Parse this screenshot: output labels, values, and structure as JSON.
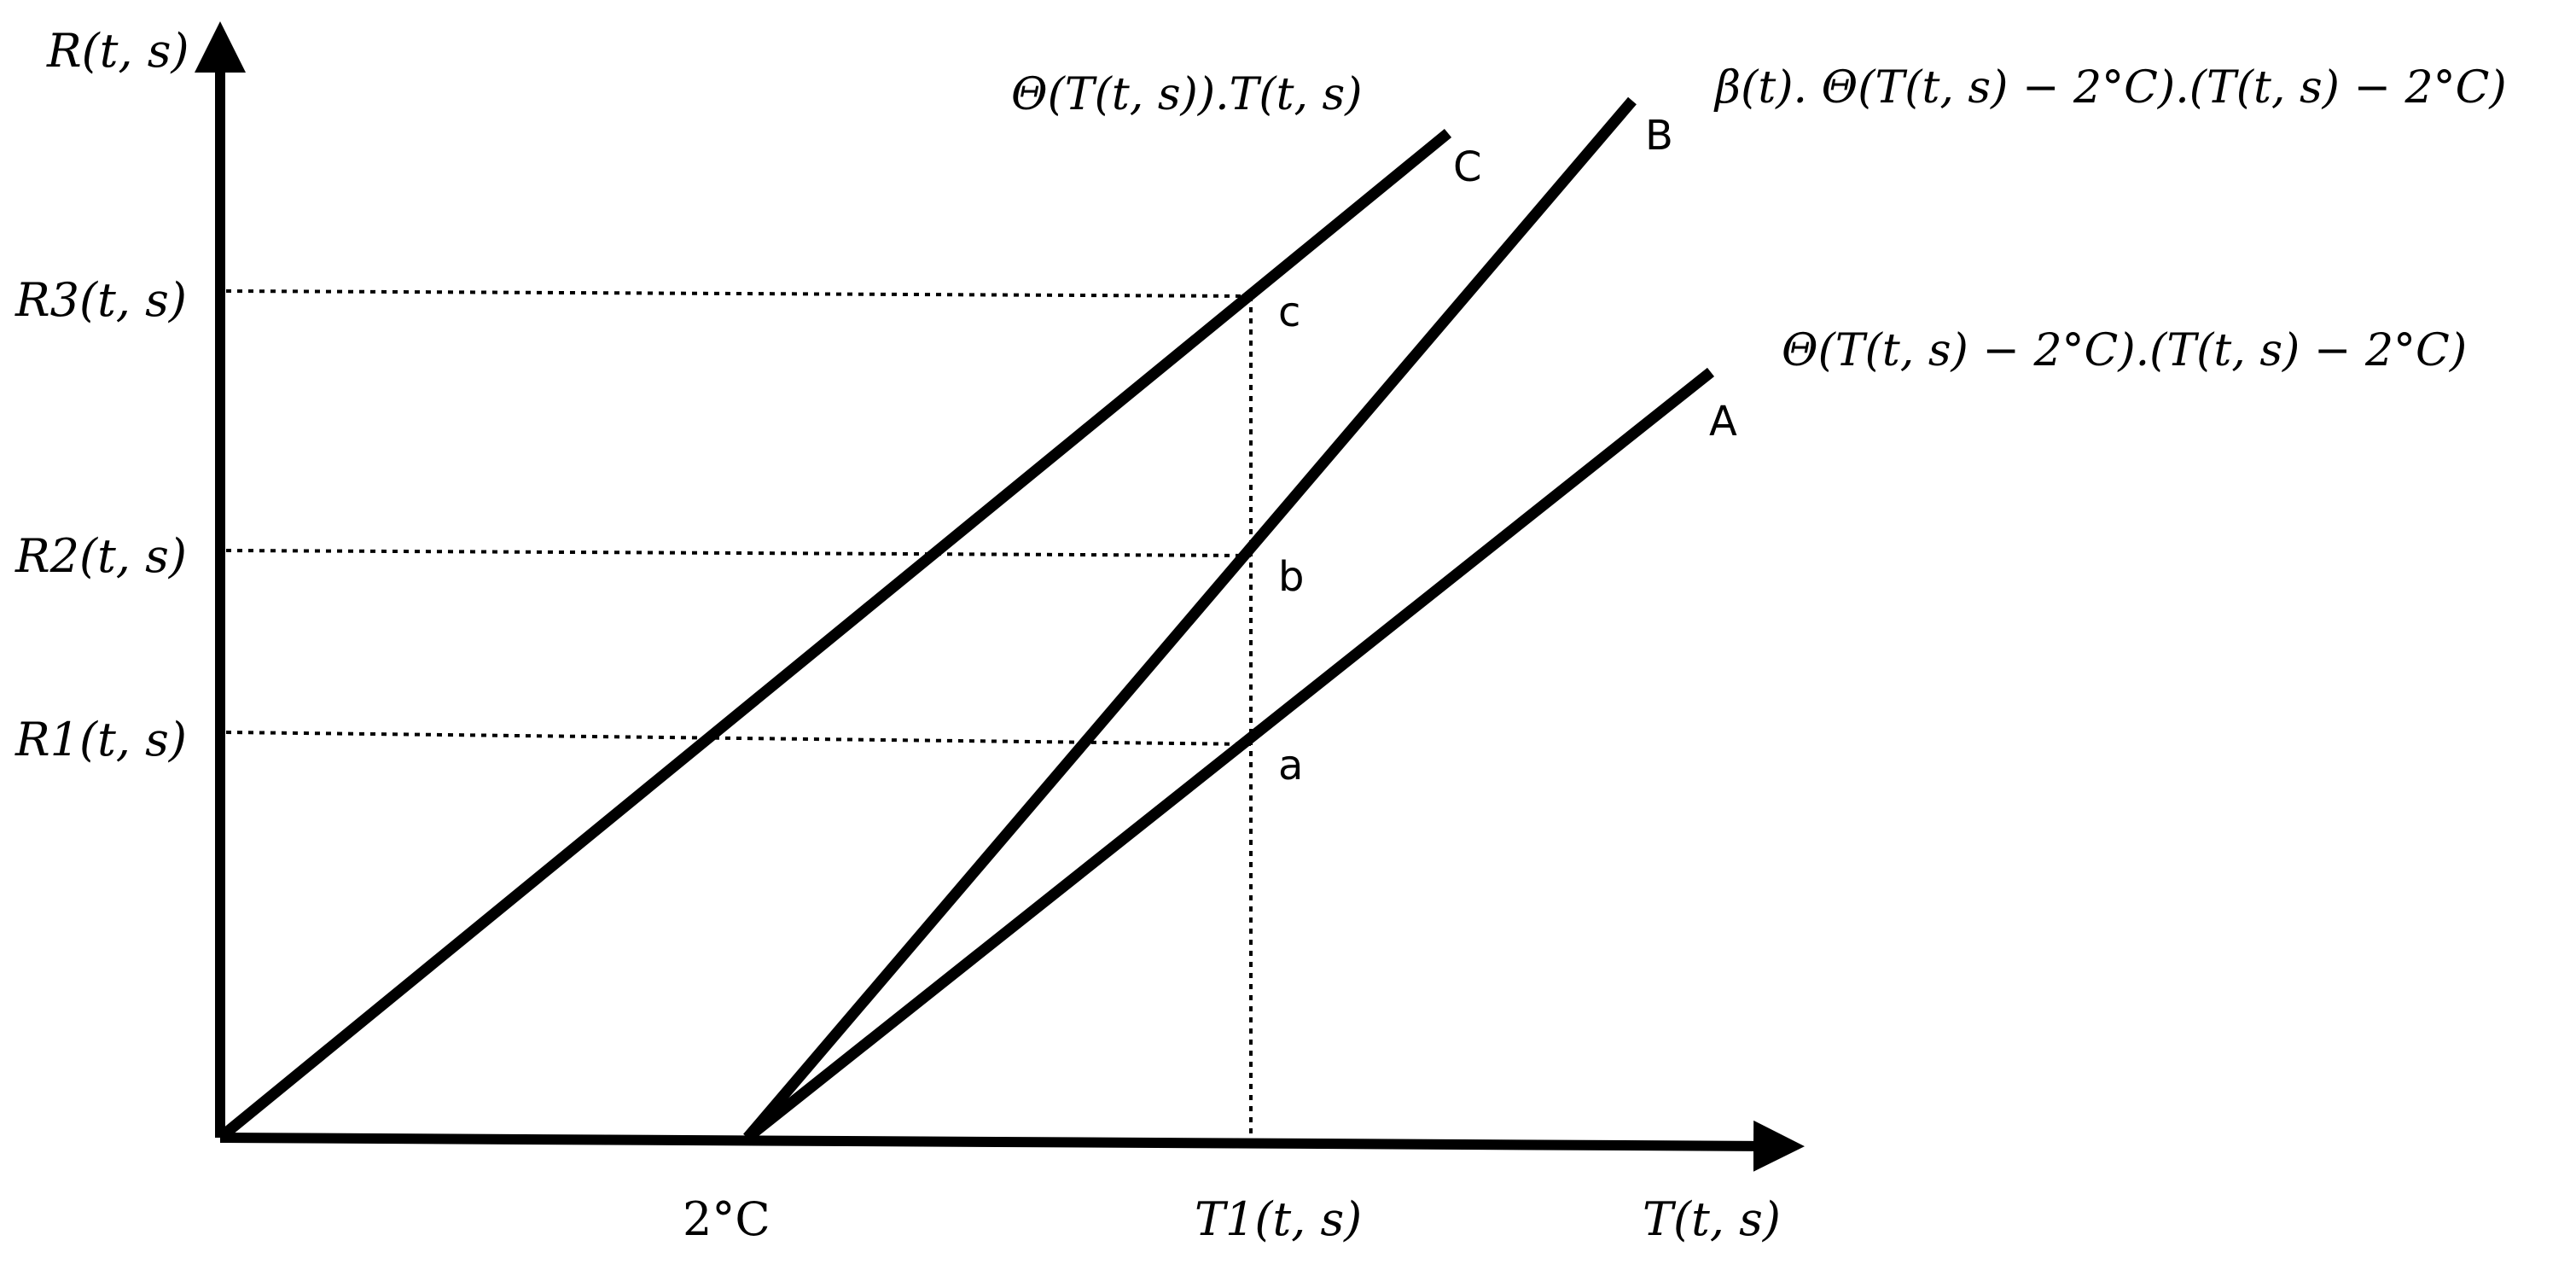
{
  "axes": {
    "y_label": "R(t, s)",
    "x_label": "T(t, s)",
    "y_ticks": [
      "R3(t, s)",
      "R2(t, s)",
      "R1(t, s)"
    ],
    "x_ticks": [
      "2°C",
      "T1(t, s)"
    ]
  },
  "curves": [
    {
      "id": "C",
      "letter": "C",
      "formula": "Θ(T(t, s)).T(t, s)"
    },
    {
      "id": "B",
      "letter": "B",
      "formula": "β(t). Θ(T(t, s) − 2°C).(T(t, s) − 2°C)"
    },
    {
      "id": "A",
      "letter": "A",
      "formula": "Θ(T(t, s) − 2°C).(T(t, s) − 2°C)"
    }
  ],
  "points": {
    "c": "c",
    "b": "b",
    "a": "a"
  },
  "colors": {
    "line": "#000000",
    "background": "#ffffff"
  }
}
